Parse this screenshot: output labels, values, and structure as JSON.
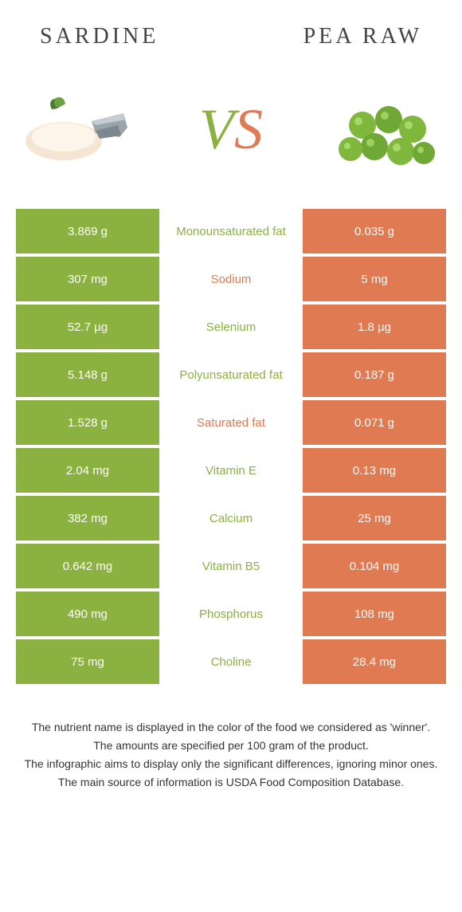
{
  "header": {
    "left_title": "Sardine",
    "right_title": "Pea raw"
  },
  "vs": {
    "v": "V",
    "s": "S"
  },
  "colors": {
    "left_bg": "#8bb140",
    "right_bg": "#e07a52",
    "mid_bg": "#ffffff",
    "left_text": "#ffffff",
    "right_text": "#ffffff",
    "nutrient_green": "#8bb140",
    "nutrient_orange": "#e07a52"
  },
  "table": {
    "rows": [
      {
        "left": "3.869 g",
        "label": "Monounsaturated fat",
        "right": "0.035 g",
        "winner": "left"
      },
      {
        "left": "307 mg",
        "label": "Sodium",
        "right": "5 mg",
        "winner": "right"
      },
      {
        "left": "52.7 µg",
        "label": "Selenium",
        "right": "1.8 µg",
        "winner": "left"
      },
      {
        "left": "5.148 g",
        "label": "Polyunsaturated fat",
        "right": "0.187 g",
        "winner": "left"
      },
      {
        "left": "1.528 g",
        "label": "Saturated fat",
        "right": "0.071 g",
        "winner": "right"
      },
      {
        "left": "2.04 mg",
        "label": "Vitamin E",
        "right": "0.13 mg",
        "winner": "left"
      },
      {
        "left": "382 mg",
        "label": "Calcium",
        "right": "25 mg",
        "winner": "left"
      },
      {
        "left": "0.642 mg",
        "label": "Vitamin B5",
        "right": "0.104 mg",
        "winner": "left"
      },
      {
        "left": "490 mg",
        "label": "Phosphorus",
        "right": "108 mg",
        "winner": "left"
      },
      {
        "left": "75 mg",
        "label": "Choline",
        "right": "28.4 mg",
        "winner": "left"
      }
    ]
  },
  "footer": {
    "lines": [
      "The nutrient name is displayed in the color of the food we considered as 'winner'.",
      "The amounts are specified per 100 gram of the product.",
      "The infographic aims to display only the significant differences, ignoring minor ones.",
      "The main source of information is USDA Food Composition Database."
    ]
  }
}
